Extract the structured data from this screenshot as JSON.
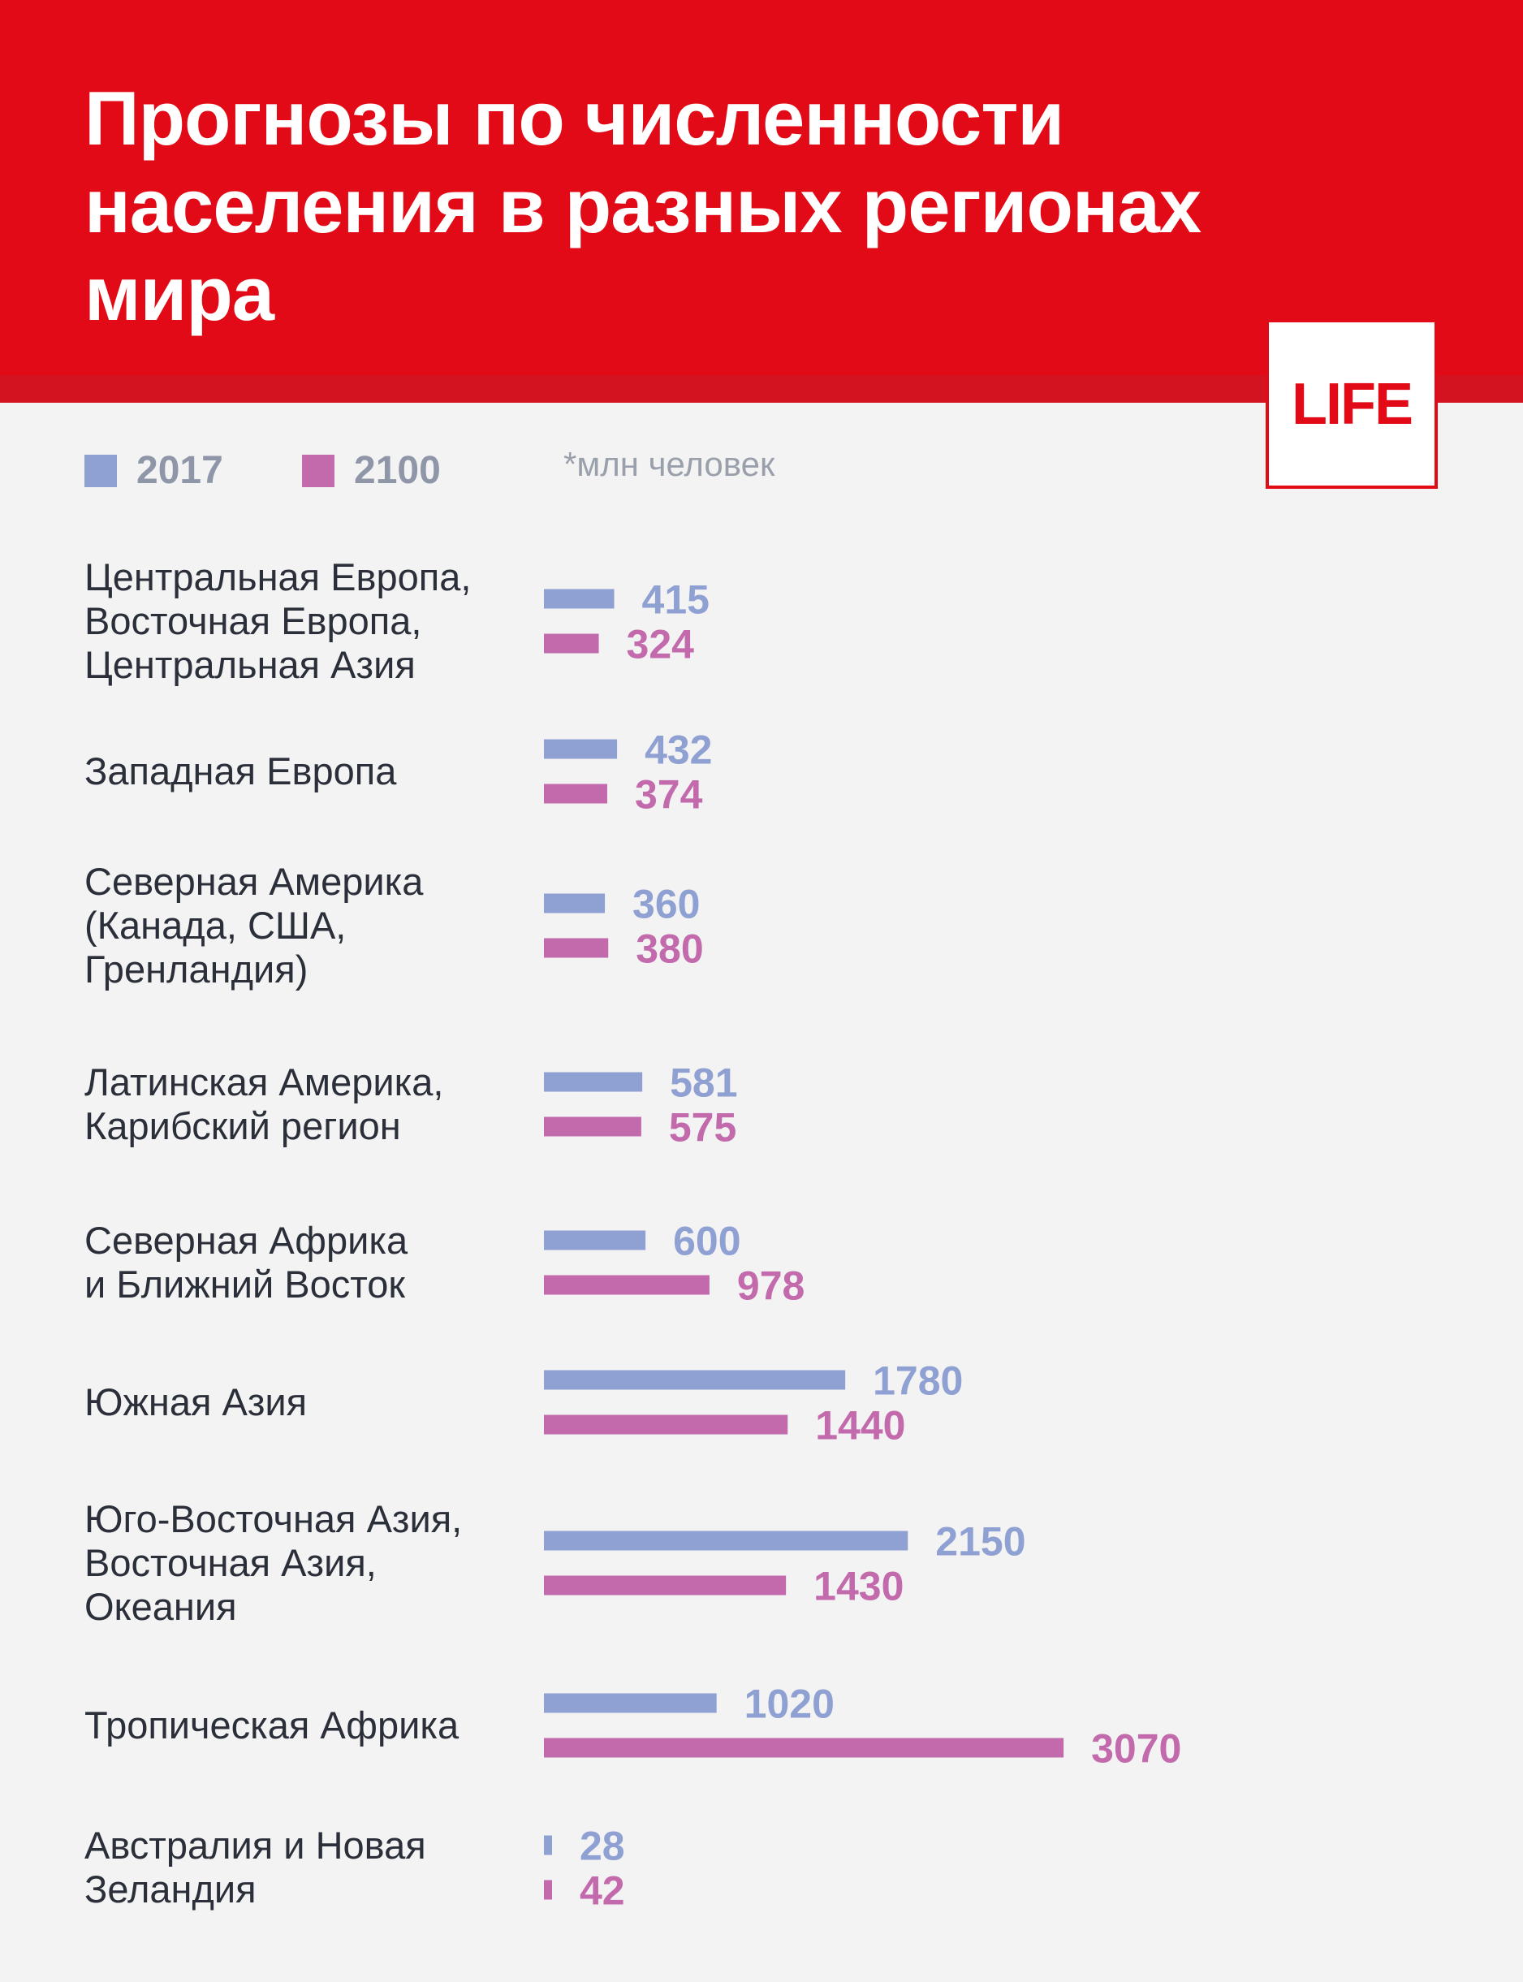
{
  "title": "Прогнозы по численности населения в разных регионах мира",
  "logo": "LIFE",
  "unit_note": "*млн человек",
  "colors": {
    "header": "#e10a16",
    "series_2017": "#8fa0d2",
    "series_2100": "#c26aac"
  },
  "chart_data": {
    "type": "bar",
    "orientation": "horizontal",
    "unit": "*млн человек",
    "categories": [
      [
        "Центральная Европа,",
        "Восточная Европа,",
        "Центральная Азия"
      ],
      [
        "Западная Европа"
      ],
      [
        "Северная Америка",
        "(Канада, США,",
        "Гренландия)"
      ],
      [
        "Латинская Америка,",
        "Карибский регион"
      ],
      [
        "Северная Африка",
        "и Ближний Восток"
      ],
      [
        "Южная Азия"
      ],
      [
        "Юго-Восточная Азия,",
        "Восточная Азия,",
        "Океания"
      ],
      [
        "Тропическая Африка"
      ],
      [
        "Австралия и Новая",
        "Зеландия"
      ]
    ],
    "series": [
      {
        "name": "2017",
        "color": "#8fa0d2",
        "values": [
          415,
          432,
          360,
          581,
          600,
          1780,
          2150,
          1020,
          28
        ]
      },
      {
        "name": "2100",
        "color": "#c26aac",
        "values": [
          324,
          374,
          380,
          575,
          978,
          1440,
          1430,
          3070,
          42
        ]
      }
    ],
    "legend": "top-left",
    "grid": false
  }
}
